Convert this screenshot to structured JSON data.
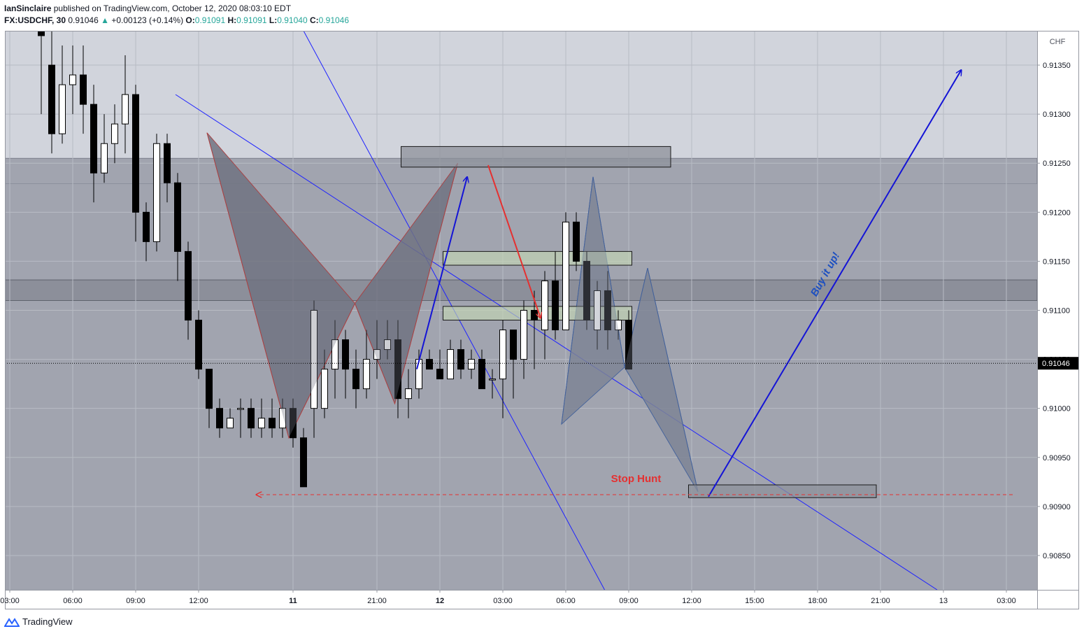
{
  "header": {
    "publisher": "IanSinclaire",
    "published_text": "published on TradingView.com, October 12, 2020 08:03:10 EDT",
    "symbol": "FX:USDCHF, 30",
    "last_price": "0.91046",
    "change": "+0.00123 (+0.14%)",
    "o_label": "O:",
    "o_value": "0.91091",
    "h_label": "H:",
    "h_value": "0.91091",
    "l_label": "L:",
    "l_value": "0.91040",
    "c_label": "C:",
    "c_value": "0.91046"
  },
  "footer": {
    "brand": "TradingView"
  },
  "colors": {
    "chart_bg": "#d1d4dc",
    "zone": "#a1a4af",
    "bull": "#ffffff",
    "bear": "#000000",
    "trendline": "#1e22ff",
    "arrow_blue": "#1414d6",
    "arrow_red": "#e53030",
    "pattern_red_fill": "#707380",
    "pattern_blue_fill": "#7d8594",
    "pattern_blue_edge": "#3b5d9c",
    "green_box": "#c3d5b3",
    "price_label_bg": "#000000"
  },
  "chart_data": {
    "type": "candlestick",
    "symbol": "FX:USDCHF",
    "interval": "30",
    "currency": "CHF",
    "ylim": [
      0.90815,
      0.91385
    ],
    "y_ticks": [
      "0.91350",
      "0.91300",
      "0.91250",
      "0.91200",
      "0.91150",
      "0.91100",
      "0.91050",
      "0.91000",
      "0.90950",
      "0.90900",
      "0.90850"
    ],
    "last_price_label": "0.91046",
    "x_ticks": [
      {
        "label": "03:00",
        "i": -3
      },
      {
        "label": "06:00",
        "i": 3
      },
      {
        "label": "09:00",
        "i": 9
      },
      {
        "label": "12:00",
        "i": 15
      },
      {
        "label": "11",
        "i": 24,
        "bold": true
      },
      {
        "label": "21:00",
        "i": 32
      },
      {
        "label": "12",
        "i": 38,
        "bold": true
      },
      {
        "label": "03:00",
        "i": 44
      },
      {
        "label": "06:00",
        "i": 50
      },
      {
        "label": "09:00",
        "i": 56
      },
      {
        "label": "12:00",
        "i": 62
      },
      {
        "label": "15:00",
        "i": 68
      },
      {
        "label": "18:00",
        "i": 74
      },
      {
        "label": "21:00",
        "i": 80
      },
      {
        "label": "13",
        "i": 86
      },
      {
        "label": "03:00",
        "i": 92
      }
    ],
    "candles": [
      {
        "i": 0,
        "o": 0.9142,
        "h": 0.9145,
        "l": 0.913,
        "c": 0.9138
      },
      {
        "i": 1,
        "o": 0.9135,
        "h": 0.9142,
        "l": 0.9126,
        "c": 0.9128
      },
      {
        "i": 2,
        "o": 0.9128,
        "h": 0.9137,
        "l": 0.9127,
        "c": 0.9133
      },
      {
        "i": 3,
        "o": 0.9133,
        "h": 0.9137,
        "l": 0.913,
        "c": 0.9134
      },
      {
        "i": 4,
        "o": 0.9134,
        "h": 0.9137,
        "l": 0.9128,
        "c": 0.9131
      },
      {
        "i": 5,
        "o": 0.9131,
        "h": 0.9133,
        "l": 0.9121,
        "c": 0.9124
      },
      {
        "i": 6,
        "o": 0.9124,
        "h": 0.913,
        "l": 0.9123,
        "c": 0.9127
      },
      {
        "i": 7,
        "o": 0.9127,
        "h": 0.9131,
        "l": 0.9125,
        "c": 0.9129
      },
      {
        "i": 8,
        "o": 0.9129,
        "h": 0.9136,
        "l": 0.9126,
        "c": 0.9132
      },
      {
        "i": 9,
        "o": 0.9132,
        "h": 0.9133,
        "l": 0.9117,
        "c": 0.912
      },
      {
        "i": 10,
        "o": 0.912,
        "h": 0.9121,
        "l": 0.9115,
        "c": 0.9117
      },
      {
        "i": 11,
        "o": 0.9117,
        "h": 0.9128,
        "l": 0.9116,
        "c": 0.9127
      },
      {
        "i": 12,
        "o": 0.9127,
        "h": 0.9128,
        "l": 0.9121,
        "c": 0.9123
      },
      {
        "i": 13,
        "o": 0.9123,
        "h": 0.9124,
        "l": 0.9113,
        "c": 0.9116
      },
      {
        "i": 14,
        "o": 0.9116,
        "h": 0.9117,
        "l": 0.9107,
        "c": 0.9109
      },
      {
        "i": 15,
        "o": 0.9109,
        "h": 0.911,
        "l": 0.9103,
        "c": 0.9104
      },
      {
        "i": 16,
        "o": 0.9104,
        "h": 0.9104,
        "l": 0.9098,
        "c": 0.91
      },
      {
        "i": 17,
        "o": 0.91,
        "h": 0.9101,
        "l": 0.9097,
        "c": 0.9098
      },
      {
        "i": 18,
        "o": 0.9098,
        "h": 0.91,
        "l": 0.9098,
        "c": 0.9099
      },
      {
        "i": 19,
        "o": 0.91,
        "h": 0.9101,
        "l": 0.9097,
        "c": 0.91
      },
      {
        "i": 20,
        "o": 0.91,
        "h": 0.9101,
        "l": 0.9097,
        "c": 0.9098
      },
      {
        "i": 21,
        "o": 0.9098,
        "h": 0.9101,
        "l": 0.9097,
        "c": 0.9099
      },
      {
        "i": 22,
        "o": 0.9099,
        "h": 0.9101,
        "l": 0.9097,
        "c": 0.9098
      },
      {
        "i": 23,
        "o": 0.9098,
        "h": 0.9101,
        "l": 0.9097,
        "c": 0.91
      },
      {
        "i": 24,
        "o": 0.91,
        "h": 0.9101,
        "l": 0.9096,
        "c": 0.9097
      },
      {
        "i": 25,
        "o": 0.9097,
        "h": 0.9098,
        "l": 0.9092,
        "c": 0.9092
      },
      {
        "i": 26,
        "o": 0.91,
        "h": 0.9111,
        "l": 0.9097,
        "c": 0.911
      },
      {
        "i": 27,
        "o": 0.91,
        "h": 0.9106,
        "l": 0.9099,
        "c": 0.9104
      },
      {
        "i": 28,
        "o": 0.9104,
        "h": 0.9109,
        "l": 0.9101,
        "c": 0.9107
      },
      {
        "i": 29,
        "o": 0.9107,
        "h": 0.9108,
        "l": 0.9101,
        "c": 0.9104
      },
      {
        "i": 30,
        "o": 0.9104,
        "h": 0.9106,
        "l": 0.91,
        "c": 0.9102
      },
      {
        "i": 31,
        "o": 0.9102,
        "h": 0.9108,
        "l": 0.9101,
        "c": 0.9105
      },
      {
        "i": 32,
        "o": 0.9105,
        "h": 0.9109,
        "l": 0.9103,
        "c": 0.9106
      },
      {
        "i": 33,
        "o": 0.9106,
        "h": 0.9109,
        "l": 0.9105,
        "c": 0.9107
      },
      {
        "i": 34,
        "o": 0.9107,
        "h": 0.9109,
        "l": 0.9099,
        "c": 0.9101
      },
      {
        "i": 35,
        "o": 0.9101,
        "h": 0.9104,
        "l": 0.9099,
        "c": 0.9102
      },
      {
        "i": 36,
        "o": 0.9102,
        "h": 0.9106,
        "l": 0.9101,
        "c": 0.9105
      },
      {
        "i": 37,
        "o": 0.9105,
        "h": 0.9106,
        "l": 0.9104,
        "c": 0.9104
      },
      {
        "i": 38,
        "o": 0.9104,
        "h": 0.9106,
        "l": 0.9103,
        "c": 0.9103
      },
      {
        "i": 39,
        "o": 0.9103,
        "h": 0.9107,
        "l": 0.9103,
        "c": 0.9106
      },
      {
        "i": 40,
        "o": 0.9106,
        "h": 0.9107,
        "l": 0.9103,
        "c": 0.9104
      },
      {
        "i": 41,
        "o": 0.9104,
        "h": 0.9106,
        "l": 0.9103,
        "c": 0.9105
      },
      {
        "i": 42,
        "o": 0.9105,
        "h": 0.9106,
        "l": 0.9102,
        "c": 0.9102
      },
      {
        "i": 43,
        "o": 0.9103,
        "h": 0.9104,
        "l": 0.9101,
        "c": 0.9103
      },
      {
        "i": 44,
        "o": 0.9103,
        "h": 0.9109,
        "l": 0.9099,
        "c": 0.9108
      },
      {
        "i": 45,
        "o": 0.9108,
        "h": 0.9108,
        "l": 0.9101,
        "c": 0.9105
      },
      {
        "i": 46,
        "o": 0.9105,
        "h": 0.9111,
        "l": 0.9103,
        "c": 0.911
      },
      {
        "i": 47,
        "o": 0.911,
        "h": 0.9112,
        "l": 0.9104,
        "c": 0.9109
      },
      {
        "i": 48,
        "o": 0.9108,
        "h": 0.9114,
        "l": 0.9105,
        "c": 0.9113
      },
      {
        "i": 49,
        "o": 0.9113,
        "h": 0.9116,
        "l": 0.9107,
        "c": 0.9108
      },
      {
        "i": 50,
        "o": 0.9108,
        "h": 0.912,
        "l": 0.9108,
        "c": 0.9119
      },
      {
        "i": 51,
        "o": 0.9119,
        "h": 0.912,
        "l": 0.9114,
        "c": 0.9115
      },
      {
        "i": 52,
        "o": 0.9115,
        "h": 0.9116,
        "l": 0.9108,
        "c": 0.9109
      },
      {
        "i": 53,
        "o": 0.9108,
        "h": 0.9113,
        "l": 0.9106,
        "c": 0.9112
      },
      {
        "i": 54,
        "o": 0.9112,
        "h": 0.9114,
        "l": 0.9106,
        "c": 0.9108
      },
      {
        "i": 55,
        "o": 0.9108,
        "h": 0.911,
        "l": 0.9107,
        "c": 0.9109
      },
      {
        "i": 56,
        "o": 0.9109,
        "h": 0.911,
        "l": 0.9104,
        "c": 0.9104
      }
    ],
    "zones": [
      {
        "from": 0.91229,
        "to": 0.91255
      },
      {
        "from": 0.9111,
        "to": 0.91131
      }
    ],
    "boxes": [
      {
        "i1": 34.3,
        "i2": 60,
        "top": 0.91267,
        "bottom": 0.91246,
        "style": "grey"
      },
      {
        "i1": 38.3,
        "i2": 56.3,
        "top": 0.9116,
        "bottom": 0.91146,
        "style": "green"
      },
      {
        "i1": 38.3,
        "i2": 56.3,
        "top": 0.91104,
        "bottom": 0.9109,
        "style": "green"
      },
      {
        "i1": 61.7,
        "i2": 79.6,
        "top": 0.90922,
        "bottom": 0.90909,
        "style": "grey"
      }
    ],
    "trendlines": [
      {
        "p1": {
          "i": 25,
          "v": 0.91385
        },
        "p2": {
          "i": 53.7,
          "v": 0.90815
        }
      },
      {
        "p1": {
          "i": 12.8,
          "v": 0.9132
        },
        "p2": {
          "i": 85.4,
          "v": 0.90815
        }
      }
    ],
    "patterns": [
      {
        "style": "red",
        "points": [
          {
            "i": 15.8,
            "v": 0.91281
          },
          {
            "i": 23.6,
            "v": 0.9097
          },
          {
            "i": 29.9,
            "v": 0.91107
          },
          {
            "i": 33.7,
            "v": 0.91005
          },
          {
            "i": 39.7,
            "v": 0.9125
          }
        ]
      },
      {
        "style": "blue",
        "points": [
          {
            "i": 49.6,
            "v": 0.90984
          },
          {
            "i": 52.6,
            "v": 0.91236
          },
          {
            "i": 55.6,
            "v": 0.91042
          },
          {
            "i": 57.8,
            "v": 0.91143
          },
          {
            "i": 62.6,
            "v": 0.90915
          }
        ]
      }
    ],
    "arrows": [
      {
        "style": "blue",
        "from": {
          "i": 35.8,
          "v": 0.9104
        },
        "to": {
          "i": 40.6,
          "v": 0.91236
        }
      },
      {
        "style": "red",
        "from": {
          "i": 42.6,
          "v": 0.91248
        },
        "to": {
          "i": 47.6,
          "v": 0.91092
        }
      },
      {
        "style": "blue",
        "from": {
          "i": 63.6,
          "v": 0.9091
        },
        "to": {
          "i": 87.7,
          "v": 0.91345
        }
      }
    ],
    "stop_line": {
      "v": 0.90912,
      "i_from": 20.5,
      "i_to": 92.6
    },
    "annotations": [
      {
        "text": "Stop Hunt",
        "i": 56.7,
        "v": 0.90925,
        "color": "#e53030",
        "rotate": 0
      },
      {
        "text": "Buy it up!",
        "i": 75.0,
        "v": 0.91135,
        "color": "#1e50c0",
        "rotate": -61
      }
    ]
  }
}
